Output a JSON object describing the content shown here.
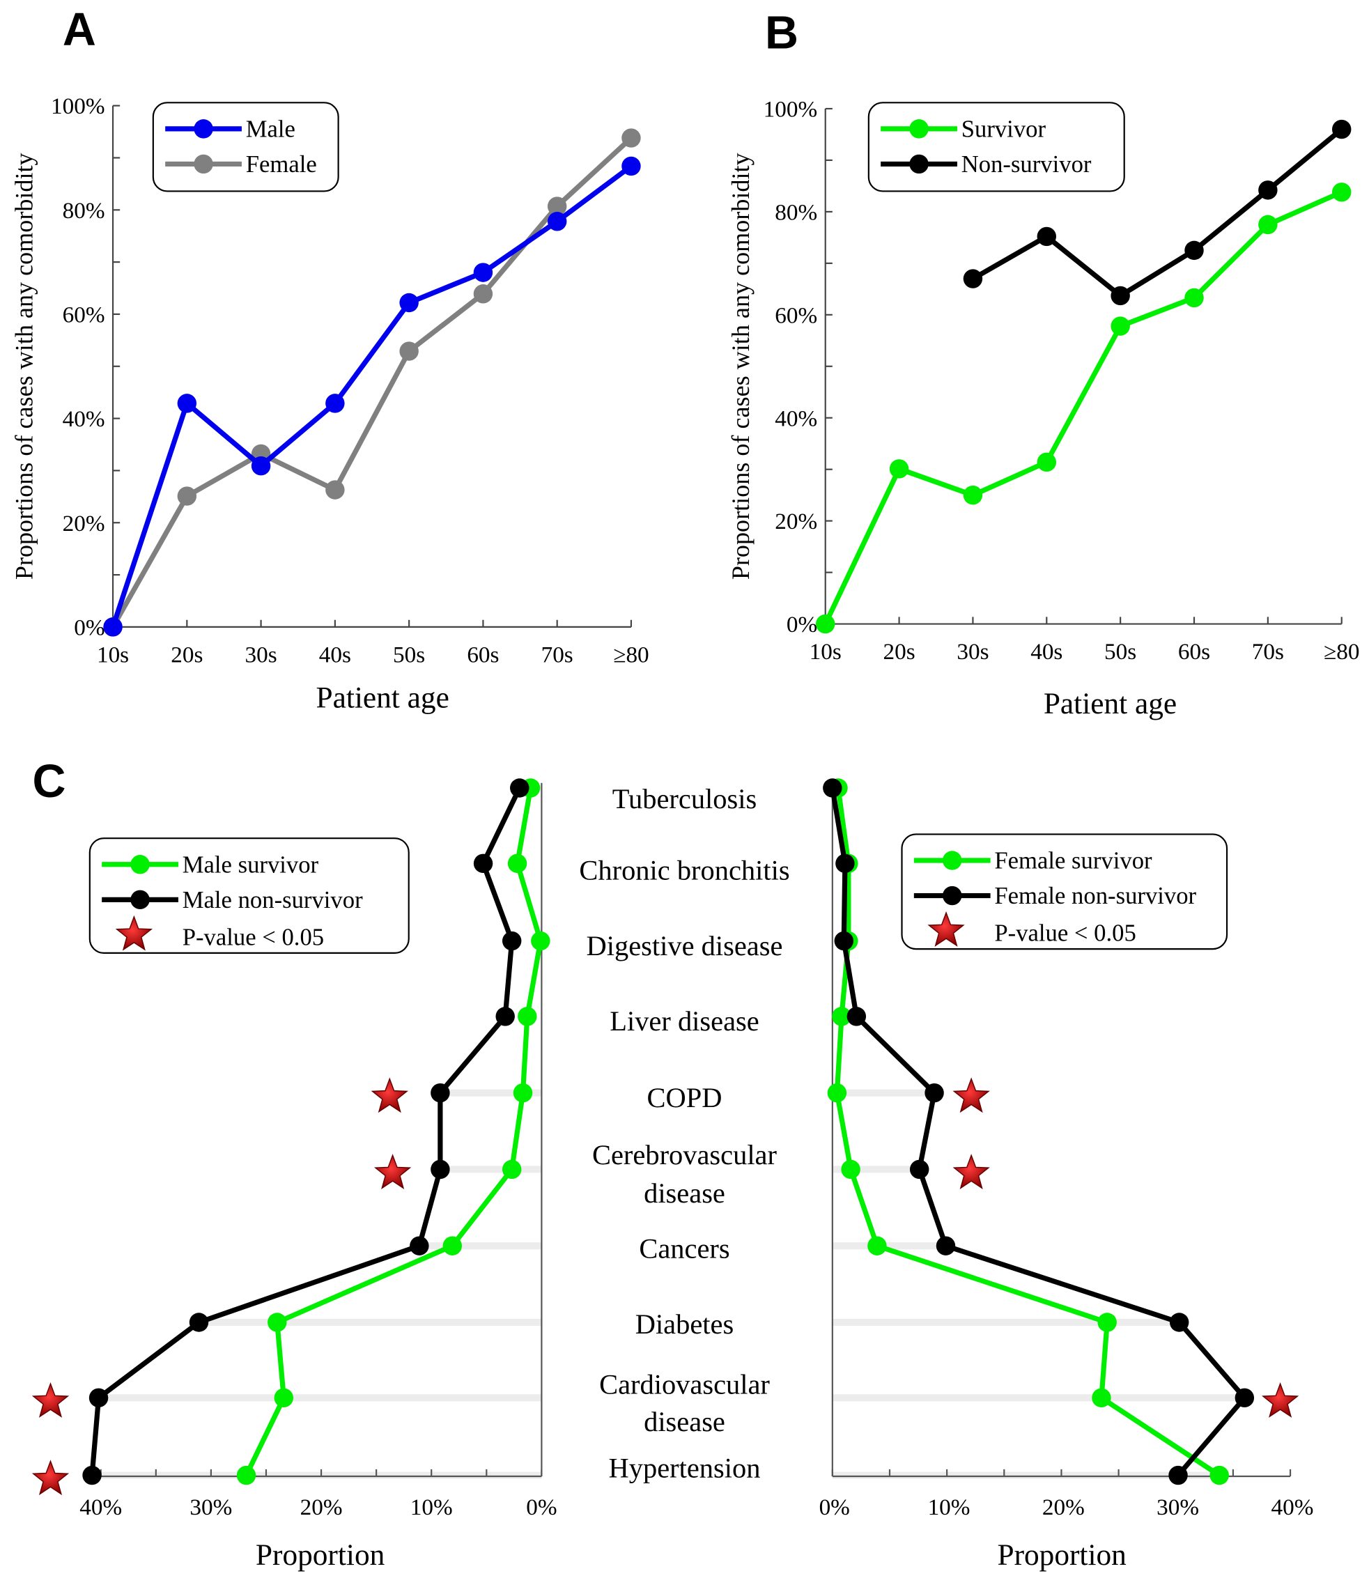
{
  "panels": {
    "A": "A",
    "B": "B",
    "C": "C"
  },
  "colors": {
    "male": "#0000ee",
    "female": "#808080",
    "survivor": "#00ee00",
    "non_survivor": "#000000",
    "star": "#cc0000"
  },
  "chart_data": [
    {
      "id": "A",
      "type": "line",
      "xlabel": "Patient age",
      "ylabel": "Proportions of cases with any comorbidity",
      "categories": [
        "10s",
        "20s",
        "30s",
        "40s",
        "50s",
        "60s",
        "70s",
        "≥80"
      ],
      "ylim": [
        0,
        100
      ],
      "yticks": [
        "0%",
        "20%",
        "40%",
        "60%",
        "80%",
        "100%"
      ],
      "legend_placement": "top-left",
      "series": [
        {
          "name": "Male",
          "color": "#0000ee",
          "values": [
            0,
            42.9,
            30.9,
            42.9,
            62.2,
            68.0,
            77.8,
            88.4
          ]
        },
        {
          "name": "Female",
          "color": "#808080",
          "values": [
            0,
            25.1,
            33.2,
            26.3,
            52.9,
            63.9,
            80.7,
            93.8
          ]
        }
      ]
    },
    {
      "id": "B",
      "type": "line",
      "xlabel": "Patient age",
      "ylabel": "Proportions of cases with any comorbidity",
      "categories": [
        "10s",
        "20s",
        "30s",
        "40s",
        "50s",
        "60s",
        "70s",
        "≥80"
      ],
      "ylim": [
        0,
        100
      ],
      "yticks": [
        "0%",
        "20%",
        "40%",
        "60%",
        "80%",
        "100%"
      ],
      "legend_placement": "top-left",
      "series": [
        {
          "name": "Survivor",
          "color": "#00ee00",
          "values": [
            0,
            30.1,
            25.0,
            31.4,
            57.8,
            63.3,
            77.5,
            83.8
          ]
        },
        {
          "name": "Non-survivor",
          "color": "#000000",
          "values": [
            null,
            null,
            67.0,
            75.2,
            63.7,
            72.5,
            84.2,
            96.0
          ]
        }
      ]
    },
    {
      "id": "C-male",
      "type": "line",
      "orientation": "horizontal",
      "xlabel": "Proportion",
      "xlim": [
        40,
        0
      ],
      "xticks": [
        "40%",
        "30%",
        "20%",
        "10%",
        "0%"
      ],
      "legend_placement": "top-left",
      "categories": [
        "Tuberculosis",
        "Chronic bronchitis",
        "Digestive disease",
        "Liver disease",
        "COPD",
        "Cerebrovascular disease",
        "Cancers",
        "Diabetes",
        "Cardiovascular disease",
        "Hypertension"
      ],
      "series": [
        {
          "name": "Male survivor",
          "color": "#00ee00",
          "values": [
            1.0,
            2.2,
            0.1,
            1.3,
            1.7,
            2.7,
            8.1,
            24.0,
            23.4,
            26.8
          ]
        },
        {
          "name": "Male non-survivor",
          "color": "#000000",
          "values": [
            2.0,
            5.3,
            2.7,
            3.3,
            9.2,
            9.2,
            11.1,
            31.1,
            40.2,
            40.8
          ]
        }
      ],
      "significance_label": "P-value < 0.05",
      "significant": [
        false,
        false,
        false,
        false,
        true,
        true,
        false,
        false,
        true,
        true
      ]
    },
    {
      "id": "C-female",
      "type": "line",
      "orientation": "horizontal",
      "xlabel": "Proportion",
      "xlim": [
        0,
        40
      ],
      "xticks": [
        "0%",
        "10%",
        "20%",
        "30%",
        "40%"
      ],
      "legend_placement": "top-right",
      "categories": [
        "Tuberculosis",
        "Chronic bronchitis",
        "Digestive disease",
        "Liver disease",
        "COPD",
        "Cerebrovascular disease",
        "Cancers",
        "Diabetes",
        "Cardiovascular disease",
        "Hypertension"
      ],
      "series": [
        {
          "name": "Female survivor",
          "color": "#00ee00",
          "values": [
            0.5,
            1.4,
            1.4,
            0.8,
            0.4,
            1.6,
            3.9,
            24.0,
            23.5,
            33.8
          ]
        },
        {
          "name": "Female non-survivor",
          "color": "#000000",
          "values": [
            0.0,
            1.1,
            1.0,
            2.1,
            8.9,
            7.6,
            9.9,
            30.3,
            36.0,
            30.2
          ]
        }
      ],
      "significance_label": "P-value < 0.05",
      "significant": [
        false,
        false,
        false,
        false,
        true,
        true,
        false,
        false,
        true,
        false
      ]
    }
  ],
  "category_labels": [
    [
      "Tuberculosis"
    ],
    [
      "Chronic bronchitis"
    ],
    [
      "Digestive disease"
    ],
    [
      "Liver disease"
    ],
    [
      "COPD"
    ],
    [
      "Cerebrovascular",
      "disease"
    ],
    [
      "Cancers"
    ],
    [
      "Diabetes"
    ],
    [
      "Cardiovascular",
      "disease"
    ],
    [
      "Hypertension"
    ]
  ]
}
